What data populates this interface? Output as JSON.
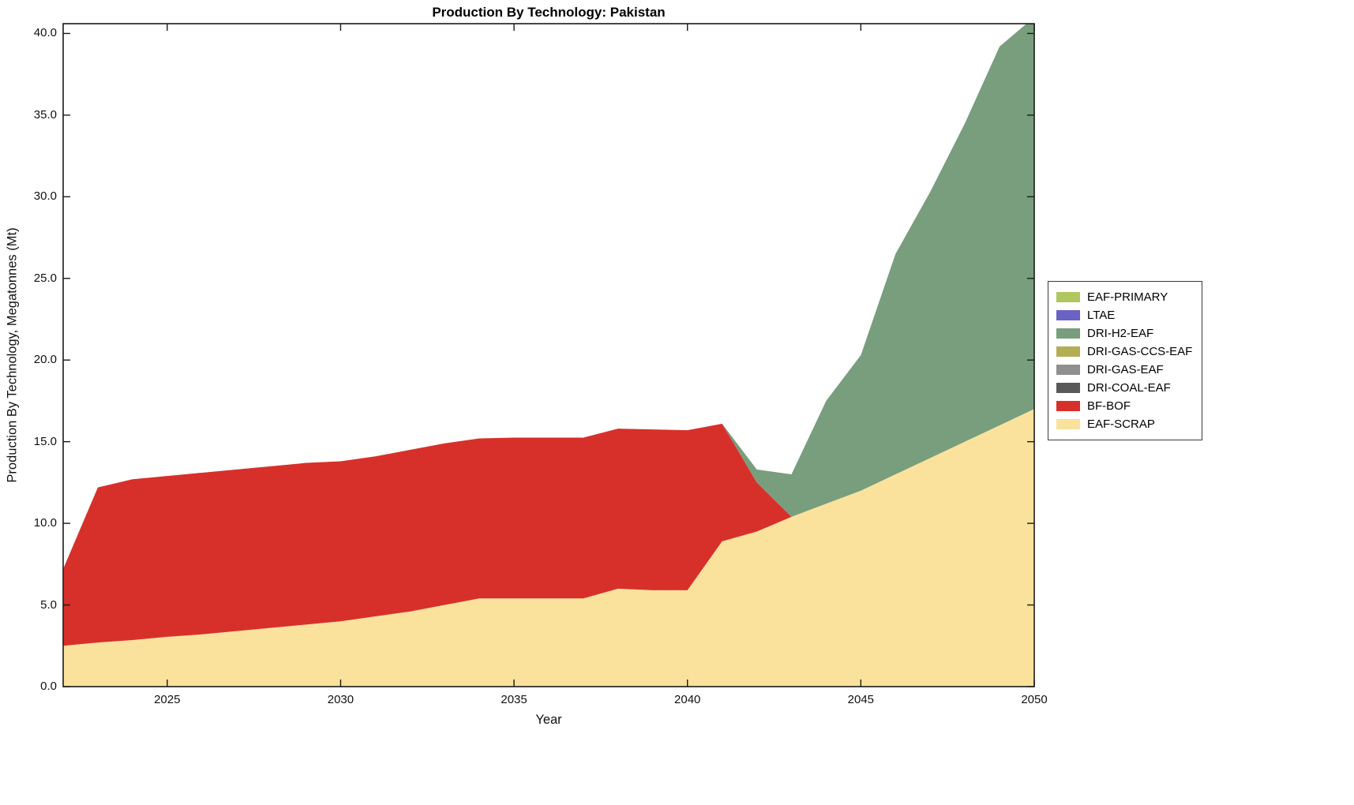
{
  "chart_data": {
    "type": "area",
    "stacked": true,
    "title": "Production By Technology: Pakistan",
    "xlabel": "Year",
    "ylabel": "Production By Technology, Megatonnes (Mt)",
    "xlim": [
      2022,
      2050
    ],
    "ylim": [
      0,
      40.6
    ],
    "grid": false,
    "legend_position": "right-outside",
    "x": [
      2022,
      2023,
      2024,
      2025,
      2026,
      2027,
      2028,
      2029,
      2030,
      2031,
      2032,
      2033,
      2034,
      2035,
      2036,
      2037,
      2038,
      2039,
      2040,
      2041,
      2042,
      2043,
      2044,
      2045,
      2046,
      2047,
      2048,
      2049,
      2050
    ],
    "series": [
      {
        "name": "EAF-SCRAP",
        "color": "#FAE29C",
        "values": [
          2.5,
          2.7,
          2.85,
          3.05,
          3.2,
          3.4,
          3.6,
          3.8,
          4.0,
          4.3,
          4.6,
          5.0,
          5.4,
          5.4,
          5.4,
          5.4,
          6.0,
          5.9,
          5.9,
          8.9,
          9.5,
          10.4,
          11.2,
          12.0,
          13.0,
          14.0,
          15.0,
          16.0,
          17.0
        ]
      },
      {
        "name": "BF-BOF",
        "color": "#D7302B",
        "values": [
          4.7,
          9.5,
          9.85,
          9.85,
          9.9,
          9.9,
          9.9,
          9.9,
          9.8,
          9.8,
          9.9,
          9.9,
          9.8,
          9.85,
          9.85,
          9.85,
          9.8,
          9.85,
          9.8,
          7.2,
          3.0,
          0,
          0,
          0,
          0,
          0,
          0,
          0,
          0
        ]
      },
      {
        "name": "DRI-COAL-EAF",
        "color": "#595959",
        "values": [
          0,
          0,
          0,
          0,
          0,
          0,
          0,
          0,
          0,
          0,
          0,
          0,
          0,
          0,
          0,
          0,
          0,
          0,
          0,
          0,
          0,
          0,
          0,
          0,
          0,
          0,
          0,
          0,
          0
        ]
      },
      {
        "name": "DRI-GAS-EAF",
        "color": "#8F8F8F",
        "values": [
          0,
          0,
          0,
          0,
          0,
          0,
          0,
          0,
          0,
          0,
          0,
          0,
          0,
          0,
          0,
          0,
          0,
          0,
          0,
          0,
          0,
          0,
          0,
          0,
          0,
          0,
          0,
          0,
          0
        ]
      },
      {
        "name": "DRI-GAS-CCS-EAF",
        "color": "#B3AE54",
        "values": [
          0,
          0,
          0,
          0,
          0,
          0,
          0,
          0,
          0,
          0,
          0,
          0,
          0,
          0,
          0,
          0,
          0,
          0,
          0,
          0,
          0,
          0,
          0,
          0,
          0,
          0,
          0,
          0,
          0
        ]
      },
      {
        "name": "DRI-H2-EAF",
        "color": "#789E7D",
        "values": [
          0,
          0,
          0,
          0,
          0,
          0,
          0,
          0,
          0,
          0,
          0,
          0,
          0,
          0,
          0,
          0,
          0,
          0,
          0,
          0,
          0.8,
          2.6,
          6.3,
          8.3,
          13.5,
          16.3,
          19.5,
          23.2,
          24.0
        ]
      },
      {
        "name": "LTAE",
        "color": "#6A62C4",
        "values": [
          0,
          0,
          0,
          0,
          0,
          0,
          0,
          0,
          0,
          0,
          0,
          0,
          0,
          0,
          0,
          0,
          0,
          0,
          0,
          0,
          0,
          0,
          0,
          0,
          0,
          0,
          0,
          0,
          0
        ]
      },
      {
        "name": "EAF-PRIMARY",
        "color": "#AFC75E",
        "values": [
          0,
          0,
          0,
          0,
          0,
          0,
          0,
          0,
          0,
          0,
          0,
          0,
          0,
          0,
          0,
          0,
          0,
          0,
          0,
          0,
          0,
          0,
          0,
          0,
          0,
          0,
          0,
          0,
          0
        ]
      }
    ],
    "legend_order_top_to_bottom": [
      "EAF-PRIMARY",
      "LTAE",
      "DRI-H2-EAF",
      "DRI-GAS-CCS-EAF",
      "DRI-GAS-EAF",
      "DRI-COAL-EAF",
      "BF-BOF",
      "EAF-SCRAP"
    ],
    "xticks": {
      "values": [
        2025,
        2030,
        2035,
        2040,
        2045,
        2050
      ],
      "labels": [
        "2025",
        "2030",
        "2035",
        "2040",
        "2045",
        "2050"
      ]
    },
    "yticks": {
      "values": [
        0,
        5,
        10,
        15,
        20,
        25,
        30,
        35,
        40
      ],
      "labels": [
        "0.0",
        "5.0",
        "10.0",
        "15.0",
        "20.0",
        "25.0",
        "30.0",
        "35.0",
        "40.0"
      ]
    },
    "axis_color": "#1a1a1a"
  }
}
